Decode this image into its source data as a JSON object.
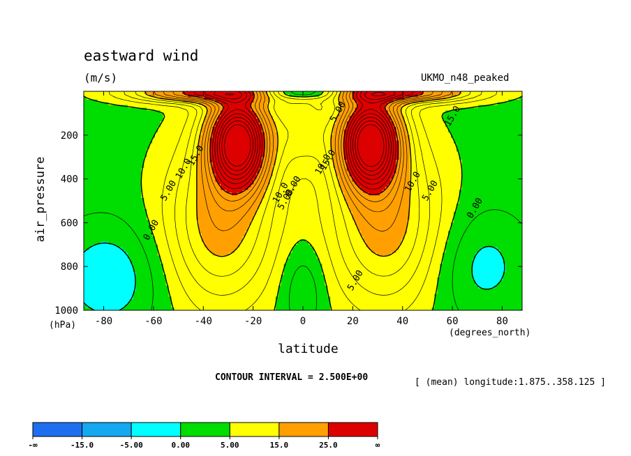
{
  "header": {
    "title": "eastward wind",
    "units": "(m/s)",
    "dataset": "UKMO_n48_peaked"
  },
  "footer": {
    "contour_interval": "CONTOUR INTERVAL = 2.500E+00",
    "mean_longitude": "[ (mean) longitude:1.875..358.125 ]"
  },
  "colors": {
    "neg_inf_to_m15": "#1e6ef0",
    "m15_to_m5": "#14a8f0",
    "m5_to_0": "#00ffff",
    "0_to_5": "#00dd00",
    "5_to_15": "#ffff00",
    "15_to_25": "#ffa000",
    "25_to_inf": "#dd0000"
  },
  "chart_data": {
    "type": "contour",
    "title": "eastward wind",
    "units": "(m/s)",
    "xlabel": "latitude",
    "xunit": "(degrees_north)",
    "ylabel": "air_pressure",
    "yunit": "(hPa)",
    "xlim": [
      -88,
      88
    ],
    "ylim": [
      1000,
      0
    ],
    "xticks": [
      -80,
      -60,
      -40,
      -20,
      0,
      20,
      40,
      60,
      80
    ],
    "xtick_labels": [
      "-80",
      "-60",
      "-40",
      "-20",
      "0",
      "20",
      "40",
      "60",
      "80"
    ],
    "yticks": [
      200,
      400,
      600,
      800,
      1000
    ],
    "ytick_labels": [
      "200",
      "400",
      "600",
      "800",
      "1000"
    ],
    "contour_interval": 2.5,
    "fill_levels": [
      -15.0,
      -5.0,
      0.0,
      5.0,
      15.0,
      25.0
    ],
    "colorbar_labels": [
      "-∞",
      "-15.0",
      "-5.00",
      "0.00",
      "5.00",
      "15.0",
      "25.0",
      "∞"
    ],
    "jets": [
      {
        "lat": -26,
        "p": 230,
        "u_max": 38
      },
      {
        "lat": 27,
        "p": 230,
        "u_max": 38
      }
    ],
    "contour_labels": [
      {
        "text": "0.00",
        "lat": -60,
        "p": 640
      },
      {
        "text": "5.00",
        "lat": -53,
        "p": 460
      },
      {
        "text": "10.0",
        "lat": -47,
        "p": 360
      },
      {
        "text": "15.0",
        "lat": -42,
        "p": 300
      },
      {
        "text": "10.0",
        "lat": -8,
        "p": 470
      },
      {
        "text": "5.00",
        "lat": -6,
        "p": 500
      },
      {
        "text": "0.00",
        "lat": -3,
        "p": 440
      },
      {
        "text": "10.0",
        "lat": 9,
        "p": 340
      },
      {
        "text": "15.0",
        "lat": 11,
        "p": 320
      },
      {
        "text": "5.00",
        "lat": 22,
        "p": 870
      },
      {
        "text": "10.0",
        "lat": 45,
        "p": 420
      },
      {
        "text": "5.00",
        "lat": 52,
        "p": 460
      },
      {
        "text": "0.00",
        "lat": 70,
        "p": 540
      },
      {
        "text": "15.0",
        "lat": 61,
        "p": 120
      },
      {
        "text": "5.00",
        "lat": 15,
        "p": 100
      }
    ]
  }
}
